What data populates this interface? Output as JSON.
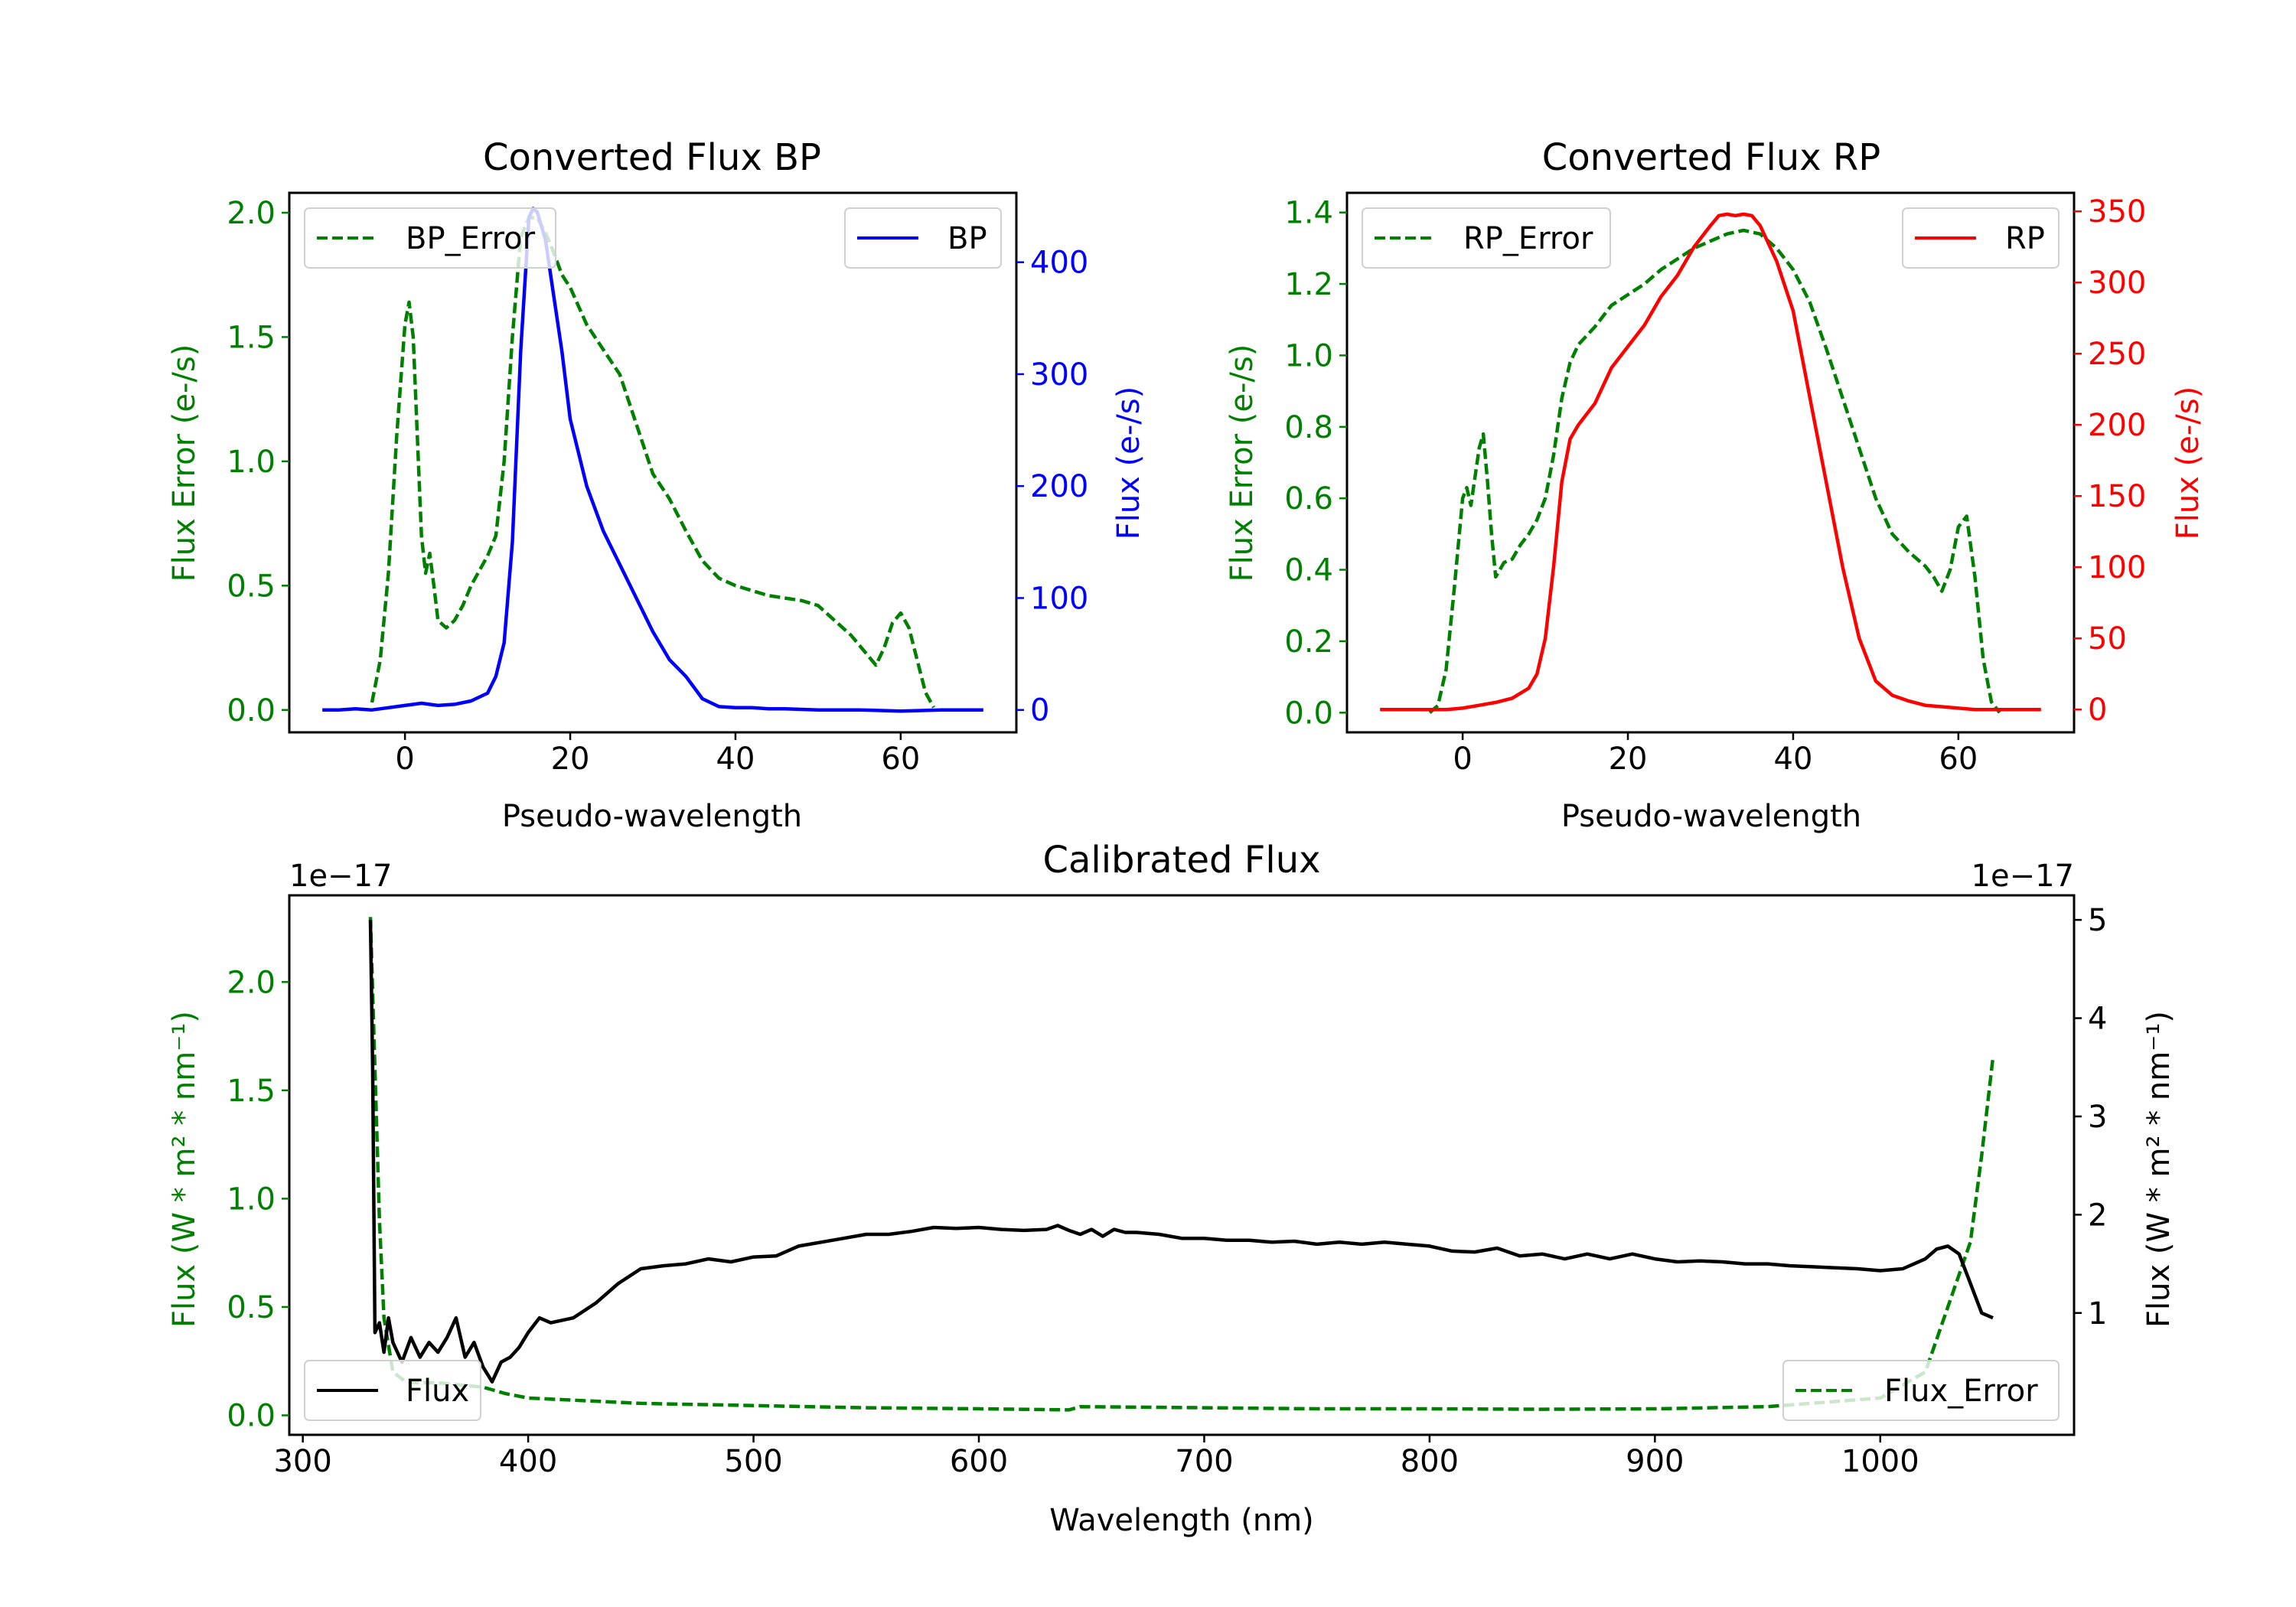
{
  "colors": {
    "green": "#008000",
    "blue": "#0000ff",
    "red": "#ff0000",
    "black": "#000000"
  },
  "chart_data": [
    {
      "id": "bp",
      "type": "line",
      "title": "Converted Flux BP",
      "xlabel": "Pseudo-wavelength",
      "ylabel_left": "Flux Error (e-/s)",
      "ylabel_right": "Flux (e-/s)",
      "xlim": [
        -14,
        74
      ],
      "ylim_left": [
        -0.09,
        2.08
      ],
      "ylim_right": [
        -20,
        462
      ],
      "xticks": [
        0,
        20,
        40,
        60
      ],
      "yticks_left": [
        0.0,
        0.5,
        1.0,
        1.5,
        2.0
      ],
      "yticks_left_labels": [
        "0.0",
        "0.5",
        "1.0",
        "1.5",
        "2.0"
      ],
      "yticks_right": [
        0,
        100,
        200,
        300,
        400
      ],
      "yticks_right_labels": [
        "0",
        "100",
        "200",
        "300",
        "400"
      ],
      "legend_left": "BP_Error",
      "legend_right": "BP",
      "series": [
        {
          "name": "BP_Error",
          "axis": "left",
          "color": "#008000",
          "style": "dashed",
          "x": [
            -4,
            -3,
            -2,
            -1,
            0,
            0.5,
            1,
            1.5,
            2,
            2.5,
            3,
            3.5,
            4,
            5,
            6,
            7,
            8,
            9,
            10,
            11,
            12,
            13,
            14,
            15,
            16,
            17,
            18,
            19,
            20,
            22,
            24,
            26,
            28,
            30,
            32,
            34,
            36,
            38,
            40,
            44,
            48,
            50,
            52,
            54,
            56,
            57,
            58,
            59,
            60,
            61,
            62,
            63,
            64
          ],
          "y": [
            0.03,
            0.2,
            0.55,
            1.1,
            1.55,
            1.64,
            1.5,
            1.1,
            0.7,
            0.55,
            0.63,
            0.5,
            0.36,
            0.33,
            0.36,
            0.42,
            0.5,
            0.56,
            0.62,
            0.7,
            1.0,
            1.5,
            1.9,
            1.98,
            1.98,
            1.92,
            1.84,
            1.75,
            1.7,
            1.55,
            1.45,
            1.35,
            1.15,
            0.95,
            0.85,
            0.72,
            0.6,
            0.53,
            0.5,
            0.46,
            0.44,
            0.42,
            0.36,
            0.3,
            0.22,
            0.18,
            0.25,
            0.35,
            0.39,
            0.33,
            0.2,
            0.07,
            0.01
          ]
        },
        {
          "name": "BP",
          "axis": "right",
          "color": "#0000ff",
          "style": "solid",
          "x": [
            -10,
            -8,
            -6,
            -4,
            -2,
            0,
            2,
            4,
            6,
            8,
            10,
            11,
            12,
            13,
            14,
            15,
            15.5,
            16,
            17,
            18,
            19,
            20,
            21,
            22,
            24,
            26,
            28,
            30,
            32,
            34,
            35,
            36,
            38,
            40,
            42,
            44,
            46,
            50,
            55,
            60,
            65,
            70
          ],
          "y": [
            0,
            0,
            1,
            0,
            2,
            4,
            6,
            4,
            5,
            8,
            15,
            30,
            60,
            150,
            320,
            440,
            448,
            445,
            420,
            370,
            320,
            260,
            230,
            200,
            160,
            130,
            100,
            70,
            45,
            30,
            20,
            10,
            3,
            2,
            2,
            1,
            1,
            0,
            0,
            -1,
            0,
            0
          ]
        }
      ]
    },
    {
      "id": "rp",
      "type": "line",
      "title": "Converted Flux RP",
      "xlabel": "Pseudo-wavelength",
      "ylabel_left": "Flux Error (e-/s)",
      "ylabel_right": "Flux (e-/s)",
      "xlim": [
        -14,
        74
      ],
      "ylim_left": [
        -0.055,
        1.455
      ],
      "ylim_right": [
        -16,
        363
      ],
      "xticks": [
        0,
        20,
        40,
        60
      ],
      "yticks_left": [
        0.0,
        0.2,
        0.4,
        0.6,
        0.8,
        1.0,
        1.2,
        1.4
      ],
      "yticks_left_labels": [
        "0.0",
        "0.2",
        "0.4",
        "0.6",
        "0.8",
        "1.0",
        "1.2",
        "1.4"
      ],
      "yticks_right": [
        0,
        50,
        100,
        150,
        200,
        250,
        300,
        350
      ],
      "yticks_right_labels": [
        "0",
        "50",
        "100",
        "150",
        "200",
        "250",
        "300",
        "350"
      ],
      "legend_left": "RP_Error",
      "legend_right": "RP",
      "series": [
        {
          "name": "RP_Error",
          "axis": "left",
          "color": "#008000",
          "style": "dashed",
          "x": [
            -4,
            -3,
            -2,
            -1,
            0,
            0.5,
            1,
            1.5,
            2,
            2.5,
            3,
            3.5,
            4,
            5,
            6,
            7,
            8,
            9,
            10,
            11,
            12,
            13,
            14,
            16,
            18,
            20,
            22,
            24,
            26,
            28,
            30,
            32,
            34,
            36,
            38,
            40,
            42,
            44,
            46,
            48,
            50,
            52,
            54,
            56,
            57,
            58,
            59,
            60,
            61,
            62,
            63,
            64,
            65
          ],
          "y": [
            0.0,
            0.02,
            0.12,
            0.35,
            0.6,
            0.63,
            0.58,
            0.66,
            0.74,
            0.78,
            0.65,
            0.5,
            0.38,
            0.42,
            0.43,
            0.47,
            0.5,
            0.54,
            0.6,
            0.72,
            0.88,
            0.98,
            1.03,
            1.08,
            1.14,
            1.17,
            1.2,
            1.24,
            1.27,
            1.3,
            1.32,
            1.34,
            1.35,
            1.34,
            1.3,
            1.24,
            1.15,
            1.02,
            0.88,
            0.74,
            0.6,
            0.5,
            0.45,
            0.41,
            0.38,
            0.34,
            0.4,
            0.52,
            0.55,
            0.38,
            0.15,
            0.03,
            0.0
          ]
        },
        {
          "name": "RP",
          "axis": "right",
          "color": "#ff0000",
          "style": "solid",
          "x": [
            -10,
            -6,
            -2,
            0,
            2,
            4,
            6,
            8,
            9,
            10,
            11,
            12,
            13,
            14,
            16,
            18,
            20,
            22,
            24,
            26,
            28,
            30,
            31,
            32,
            33,
            34,
            35,
            36,
            38,
            40,
            42,
            44,
            46,
            48,
            50,
            52,
            54,
            56,
            58,
            60,
            62,
            65,
            70
          ],
          "y": [
            0,
            0,
            0,
            1,
            3,
            5,
            8,
            15,
            25,
            50,
            100,
            160,
            190,
            200,
            215,
            240,
            255,
            270,
            290,
            305,
            325,
            340,
            347,
            348,
            347,
            348,
            347,
            340,
            315,
            280,
            220,
            160,
            100,
            50,
            20,
            10,
            6,
            3,
            2,
            1,
            0,
            0,
            0
          ]
        }
      ]
    },
    {
      "id": "calibrated",
      "type": "line",
      "title": "Calibrated Flux",
      "xlabel": "Wavelength (nm)",
      "ylabel_left": "Flux (W * m² * nm⁻¹)",
      "ylabel_right": "Flux (W * m² * nm⁻¹)",
      "offset_left": "1e−17",
      "offset_right": "1e−17",
      "xlim": [
        294,
        1086
      ],
      "ylim_left": [
        -0.09,
        2.4
      ],
      "ylim_right": [
        -0.24,
        5.25
      ],
      "xticks": [
        300,
        400,
        500,
        600,
        700,
        800,
        900,
        1000
      ],
      "yticks_left": [
        0.0,
        0.5,
        1.0,
        1.5,
        2.0
      ],
      "yticks_left_labels": [
        "0.0",
        "0.5",
        "1.0",
        "1.5",
        "2.0"
      ],
      "yticks_right": [
        1,
        2,
        3,
        4,
        5
      ],
      "yticks_right_labels": [
        "1",
        "2",
        "3",
        "4",
        "5"
      ],
      "legend_left": "Flux",
      "legend_right": "Flux_Error",
      "series": [
        {
          "name": "Flux_Error",
          "axis": "left",
          "color": "#008000",
          "style": "dashed",
          "x": [
            330,
            332,
            334,
            336,
            340,
            345,
            350,
            360,
            370,
            380,
            390,
            400,
            420,
            450,
            500,
            550,
            600,
            640,
            645,
            700,
            750,
            800,
            850,
            900,
            950,
            1000,
            1020,
            1030,
            1040,
            1045,
            1050
          ],
          "y": [
            2.3,
            1.6,
            0.9,
            0.45,
            0.2,
            0.16,
            0.15,
            0.15,
            0.14,
            0.13,
            0.1,
            0.08,
            0.07,
            0.055,
            0.045,
            0.035,
            0.03,
            0.025,
            0.04,
            0.035,
            0.03,
            0.03,
            0.028,
            0.03,
            0.04,
            0.08,
            0.2,
            0.5,
            0.8,
            1.2,
            1.65
          ]
        },
        {
          "name": "Flux",
          "axis": "right",
          "color": "#000000",
          "style": "solid",
          "x": [
            330,
            331,
            332,
            334,
            336,
            338,
            340,
            344,
            348,
            352,
            356,
            360,
            364,
            368,
            372,
            376,
            380,
            384,
            388,
            392,
            396,
            400,
            405,
            410,
            420,
            430,
            440,
            450,
            460,
            470,
            480,
            490,
            500,
            510,
            520,
            530,
            540,
            550,
            560,
            570,
            580,
            590,
            600,
            610,
            620,
            630,
            635,
            640,
            645,
            650,
            655,
            660,
            665,
            670,
            680,
            690,
            700,
            710,
            720,
            730,
            740,
            750,
            760,
            770,
            780,
            790,
            800,
            810,
            820,
            830,
            840,
            850,
            860,
            870,
            880,
            890,
            900,
            910,
            920,
            930,
            940,
            950,
            960,
            970,
            980,
            990,
            1000,
            1010,
            1020,
            1025,
            1030,
            1035,
            1040,
            1045,
            1050
          ],
          "y": [
            5.0,
            3.5,
            0.8,
            0.9,
            0.6,
            0.95,
            0.7,
            0.5,
            0.75,
            0.55,
            0.7,
            0.6,
            0.75,
            0.95,
            0.55,
            0.7,
            0.45,
            0.3,
            0.5,
            0.55,
            0.65,
            0.8,
            0.95,
            0.9,
            0.95,
            1.1,
            1.3,
            1.45,
            1.48,
            1.5,
            1.55,
            1.52,
            1.57,
            1.58,
            1.68,
            1.72,
            1.76,
            1.8,
            1.8,
            1.83,
            1.87,
            1.86,
            1.87,
            1.85,
            1.84,
            1.85,
            1.89,
            1.84,
            1.8,
            1.85,
            1.78,
            1.85,
            1.82,
            1.82,
            1.8,
            1.76,
            1.76,
            1.74,
            1.74,
            1.72,
            1.73,
            1.7,
            1.72,
            1.7,
            1.72,
            1.7,
            1.68,
            1.63,
            1.62,
            1.66,
            1.58,
            1.6,
            1.55,
            1.6,
            1.55,
            1.6,
            1.55,
            1.52,
            1.53,
            1.52,
            1.5,
            1.5,
            1.48,
            1.47,
            1.46,
            1.45,
            1.43,
            1.45,
            1.55,
            1.65,
            1.68,
            1.6,
            1.3,
            1.0,
            0.95
          ]
        }
      ]
    }
  ]
}
